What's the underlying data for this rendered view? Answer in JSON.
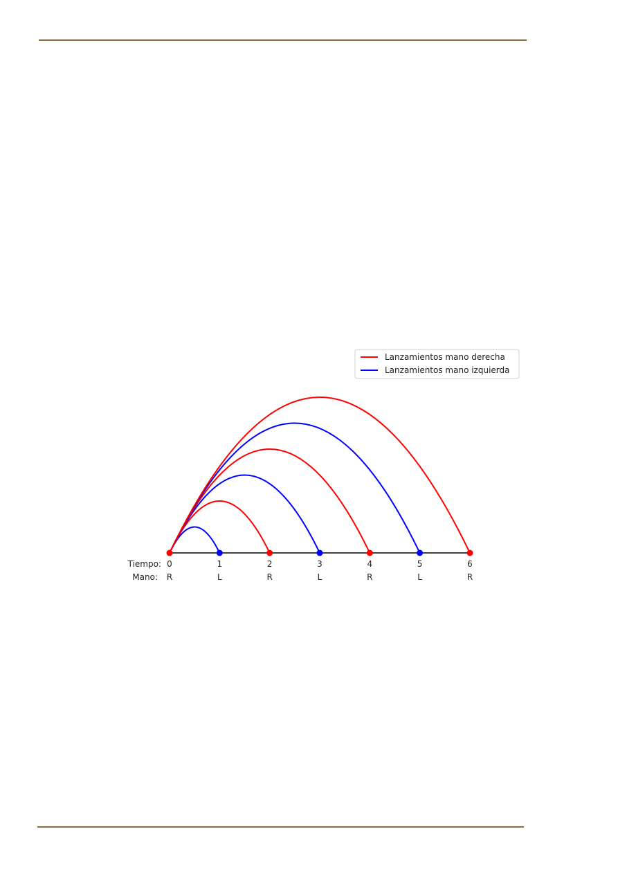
{
  "labels": {
    "time_row": "Tiempo:",
    "hand_row": "Mano:"
  },
  "legend": {
    "right": "Lanzamientos mano derecha",
    "left": "Lanzamientos mano izquierda"
  },
  "colors": {
    "right": "#ff0000",
    "left": "#0000ff",
    "timeline": "#000000",
    "rule": "#8b6a3e"
  },
  "timeline": {
    "times": [
      "0",
      "1",
      "2",
      "3",
      "4",
      "5",
      "6"
    ],
    "hands": [
      "R",
      "L",
      "R",
      "L",
      "R",
      "L",
      "R"
    ]
  },
  "throws": [
    {
      "start": 0,
      "end": 1,
      "hand": "left"
    },
    {
      "start": 0,
      "end": 2,
      "hand": "right"
    },
    {
      "start": 0,
      "end": 3,
      "hand": "left"
    },
    {
      "start": 0,
      "end": 4,
      "hand": "right"
    },
    {
      "start": 0,
      "end": 5,
      "hand": "left"
    },
    {
      "start": 0,
      "end": 6,
      "hand": "right"
    }
  ]
}
